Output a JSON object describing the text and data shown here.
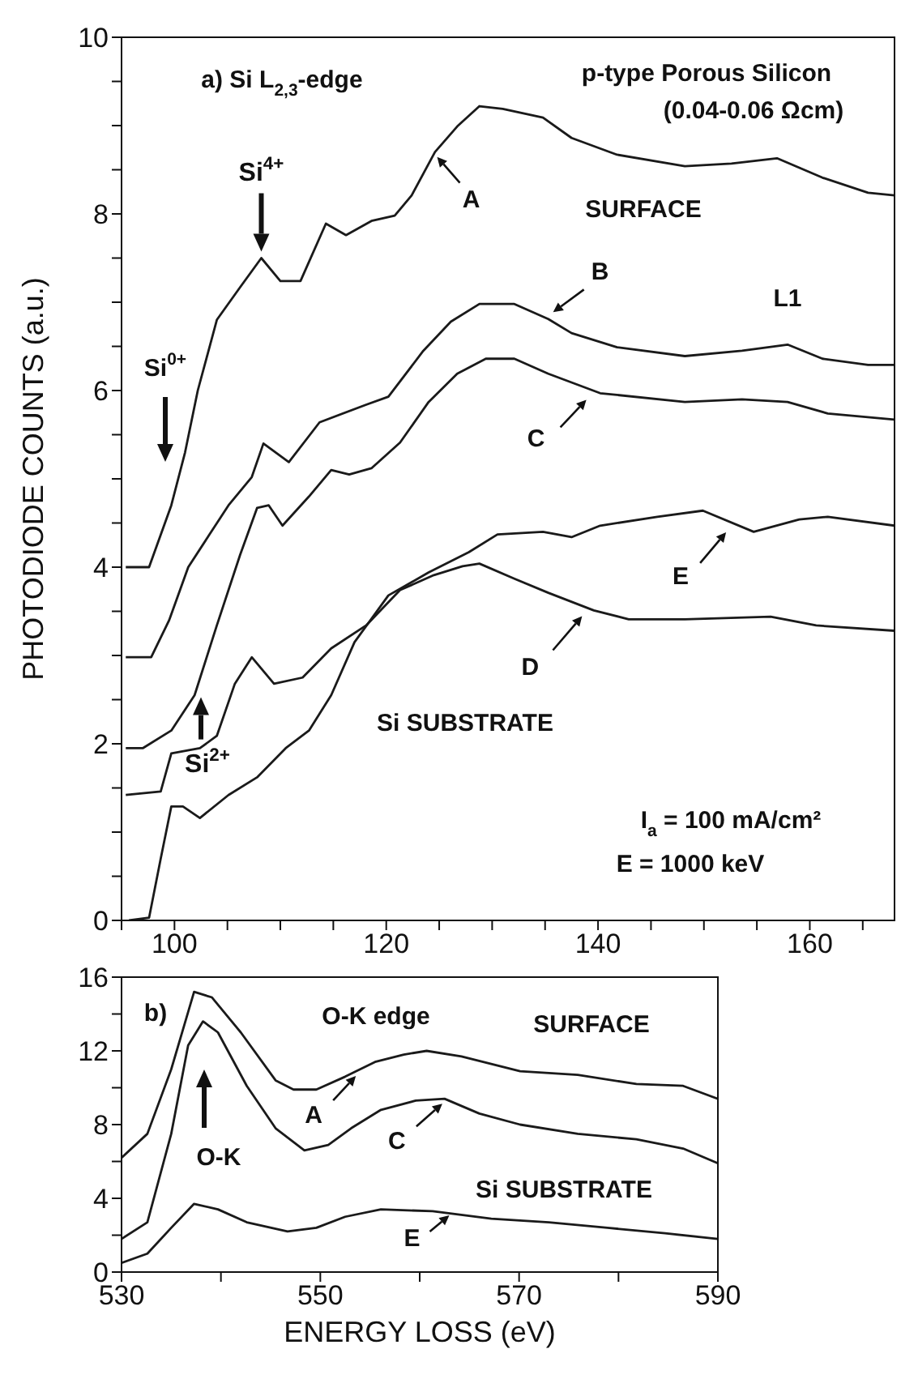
{
  "chart_data": [
    {
      "type": "line",
      "ylabel": "PHOTODIODE COUNTS (a.u.)",
      "xlim": [
        95,
        168
      ],
      "ylim": [
        0,
        10
      ],
      "marker": "none",
      "line_style": "solid",
      "xticks": [
        {
          "value": 95,
          "label": null
        },
        100,
        {
          "value": 105,
          "label": null
        },
        {
          "value": 110,
          "label": null
        },
        {
          "value": 115,
          "label": null
        },
        120,
        {
          "value": 125,
          "label": null
        },
        {
          "value": 130,
          "label": null
        },
        {
          "value": 135,
          "label": null
        },
        140,
        {
          "value": 145,
          "label": null
        },
        {
          "value": 150,
          "label": null
        },
        {
          "value": 155,
          "label": null
        },
        160,
        {
          "value": 165,
          "label": null
        }
      ],
      "yticks": [
        0,
        {
          "value": 0.5,
          "label": null
        },
        {
          "value": 1,
          "label": null
        },
        {
          "value": 1.5,
          "label": null
        },
        2,
        {
          "value": 2.5,
          "label": null
        },
        {
          "value": 3,
          "label": null
        },
        {
          "value": 3.5,
          "label": null
        },
        4,
        {
          "value": 4.5,
          "label": null
        },
        {
          "value": 5,
          "label": null
        },
        {
          "value": 5.5,
          "label": null
        },
        6,
        {
          "value": 6.5,
          "label": null
        },
        {
          "value": 7,
          "label": null
        },
        {
          "value": 7.5,
          "label": null
        },
        8,
        {
          "value": 8.5,
          "label": null
        },
        {
          "value": 9,
          "label": null
        },
        {
          "value": 9.5,
          "label": null
        },
        10
      ],
      "annotations": [
        "a) Si L$_{2,3}$-edge",
        "p-type Porous Silicon",
        "(0.04-0.06 Ωcm)",
        {
          "text": "Si$^{4+}$",
          "x": 108.2,
          "y": 7.5
        },
        "Si$^{0+}$",
        {
          "text": "Si$^{2+}$",
          "x": 102.5,
          "y": 2.6
        },
        {
          "text": "A",
          "x": 124.5,
          "y": 8.7
        },
        {
          "text": "B",
          "x": 135.3,
          "y": 6.85
        },
        {
          "text": "C",
          "x": 139.2,
          "y": 5.95
        },
        {
          "text": "D",
          "x": 138.8,
          "y": 3.5
        },
        {
          "text": "E",
          "x": 152.4,
          "y": 4.45
        },
        "SURFACE",
        "L1",
        "Si SUBSTRATE",
        "I$_{a}$ = 100 mA/cm²",
        "E = 1000 keV"
      ],
      "series": [
        {
          "color": "#1a1a1a",
          "x": [
            95.4,
            97.6,
            99.7,
            101.0,
            102.2,
            104.0,
            106.2,
            108.2,
            110.0,
            111.9,
            114.3,
            116.2,
            118.6,
            120.8,
            122.4,
            124.6,
            126.7,
            128.8,
            131.0,
            134.8,
            137.5,
            141.8,
            148.2,
            152.6,
            156.9,
            161.2,
            165.5,
            168
          ],
          "values": [
            4.0,
            4.0,
            4.7,
            5.3,
            6.0,
            6.8,
            7.17,
            7.5,
            7.24,
            7.24,
            7.89,
            7.76,
            7.92,
            7.98,
            8.21,
            8.7,
            8.99,
            9.22,
            9.19,
            9.09,
            8.86,
            8.67,
            8.54,
            8.57,
            8.63,
            8.41,
            8.24,
            8.21
          ]
        },
        {
          "color": "#1a1a1a",
          "x": [
            95.4,
            97.8,
            99.5,
            101.3,
            103.2,
            105.1,
            107.3,
            108.4,
            110.8,
            113.7,
            118.1,
            120.2,
            123.5,
            126.1,
            128.8,
            132.1,
            135.3,
            137.5,
            141.8,
            148.2,
            153.6,
            157.9,
            161.2,
            165.5,
            168
          ],
          "values": [
            2.98,
            2.98,
            3.4,
            4.0,
            4.35,
            4.7,
            5.02,
            5.4,
            5.19,
            5.64,
            5.84,
            5.93,
            6.45,
            6.78,
            6.98,
            6.98,
            6.81,
            6.65,
            6.49,
            6.39,
            6.45,
            6.52,
            6.36,
            6.29,
            6.29
          ]
        },
        {
          "color": "#1a1a1a",
          "x": [
            95.4,
            97.0,
            99.7,
            101.9,
            104.0,
            106.2,
            107.8,
            108.9,
            110.2,
            112.7,
            114.8,
            116.5,
            118.6,
            121.3,
            124.0,
            126.7,
            129.4,
            132.1,
            135.3,
            140.2,
            148.2,
            153.6,
            157.9,
            161.7,
            168
          ],
          "values": [
            1.95,
            1.95,
            2.15,
            2.55,
            3.34,
            4.14,
            4.67,
            4.7,
            4.47,
            4.8,
            5.1,
            5.05,
            5.12,
            5.41,
            5.87,
            6.19,
            6.36,
            6.36,
            6.19,
            5.97,
            5.87,
            5.9,
            5.87,
            5.74,
            5.67
          ]
        },
        {
          "color": "#1a1a1a",
          "x": [
            95.4,
            98.7,
            99.7,
            102.4,
            104.0,
            105.7,
            107.3,
            109.4,
            112.1,
            114.8,
            118.1,
            121.3,
            124.5,
            127.2,
            128.8,
            132.1,
            135.3,
            139.6,
            142.9,
            148.2,
            156.3,
            160.6,
            168
          ],
          "values": [
            1.42,
            1.46,
            1.89,
            1.95,
            2.09,
            2.68,
            2.98,
            2.68,
            2.75,
            3.08,
            3.34,
            3.74,
            3.91,
            4.01,
            4.04,
            3.87,
            3.71,
            3.51,
            3.41,
            3.41,
            3.44,
            3.34,
            3.28
          ]
        },
        {
          "color": "#1a1a1a",
          "x": [
            95.7,
            97.6,
            98.7,
            99.7,
            100.8,
            102.4,
            105.1,
            107.8,
            110.5,
            112.7,
            114.8,
            117.0,
            120.2,
            124.0,
            127.8,
            130.5,
            134.8,
            137.5,
            140.2,
            145.6,
            149.9,
            154.7,
            159.0,
            161.7,
            168
          ],
          "values": [
            0,
            0.03,
            0.7,
            1.29,
            1.29,
            1.16,
            1.42,
            1.62,
            1.95,
            2.15,
            2.55,
            3.15,
            3.68,
            3.94,
            4.17,
            4.37,
            4.4,
            4.34,
            4.47,
            4.57,
            4.64,
            4.4,
            4.54,
            4.57,
            4.47
          ]
        }
      ]
    },
    {
      "type": "line",
      "xlabel": "ENERGY LOSS (eV)",
      "xlim": [
        530,
        590
      ],
      "ylim": [
        0,
        16
      ],
      "marker": "none",
      "line_style": "solid",
      "xticks": [
        530,
        {
          "value": 540,
          "label": null
        },
        550,
        {
          "value": 560,
          "label": null
        },
        570,
        {
          "value": 580,
          "label": null
        },
        590
      ],
      "yticks": [
        0,
        {
          "value": 2,
          "label": null
        },
        4,
        {
          "value": 6,
          "label": null
        },
        8,
        {
          "value": 10,
          "label": null
        },
        12,
        {
          "value": 14,
          "label": null
        },
        16
      ],
      "annotations": [
        "b)",
        "O-K edge",
        "SURFACE",
        "Si SUBSTRATE",
        "O-K",
        {
          "text": "A",
          "x": 553.9,
          "y": 10.9
        },
        {
          "text": "C",
          "x": 562.6,
          "y": 9.4
        },
        {
          "text": "E",
          "x": 563.3,
          "y": 3.25
        }
      ],
      "series": [
        {
          "color": "#1a1a1a",
          "x": [
            530,
            532.6,
            535.0,
            537.3,
            539.1,
            542.0,
            545.5,
            547.3,
            549.6,
            552.5,
            555.5,
            558.4,
            560.7,
            564.2,
            570.1,
            575.9,
            581.8,
            586.5,
            590
          ],
          "values": [
            6.2,
            7.5,
            11.0,
            15.2,
            14.9,
            13.0,
            10.4,
            9.9,
            9.9,
            10.6,
            11.4,
            11.8,
            12.0,
            11.7,
            10.9,
            10.7,
            10.2,
            10.1,
            9.4
          ]
        },
        {
          "color": "#1a1a1a",
          "x": [
            530,
            532.6,
            535,
            536.7,
            538.2,
            539.7,
            542.6,
            545.5,
            548.4,
            550.8,
            553.1,
            556.1,
            559.6,
            562.5,
            566.0,
            570.1,
            575.9,
            581.8,
            586.5,
            590
          ],
          "values": [
            1.8,
            2.7,
            7.5,
            12.3,
            13.6,
            13.0,
            10.1,
            7.8,
            6.6,
            6.9,
            7.8,
            8.8,
            9.3,
            9.4,
            8.6,
            8.0,
            7.5,
            7.2,
            6.7,
            5.9
          ]
        },
        {
          "color": "#1a1a1a",
          "x": [
            530,
            532.6,
            535,
            537.3,
            539.7,
            542.6,
            546.7,
            549.6,
            552.5,
            556.1,
            561.3,
            567.2,
            573.0,
            578.9,
            584.7,
            590
          ],
          "values": [
            0.5,
            1.0,
            2.4,
            3.7,
            3.4,
            2.7,
            2.2,
            2.4,
            3.0,
            3.4,
            3.3,
            2.9,
            2.7,
            2.4,
            2.1,
            1.8
          ]
        }
      ]
    }
  ]
}
